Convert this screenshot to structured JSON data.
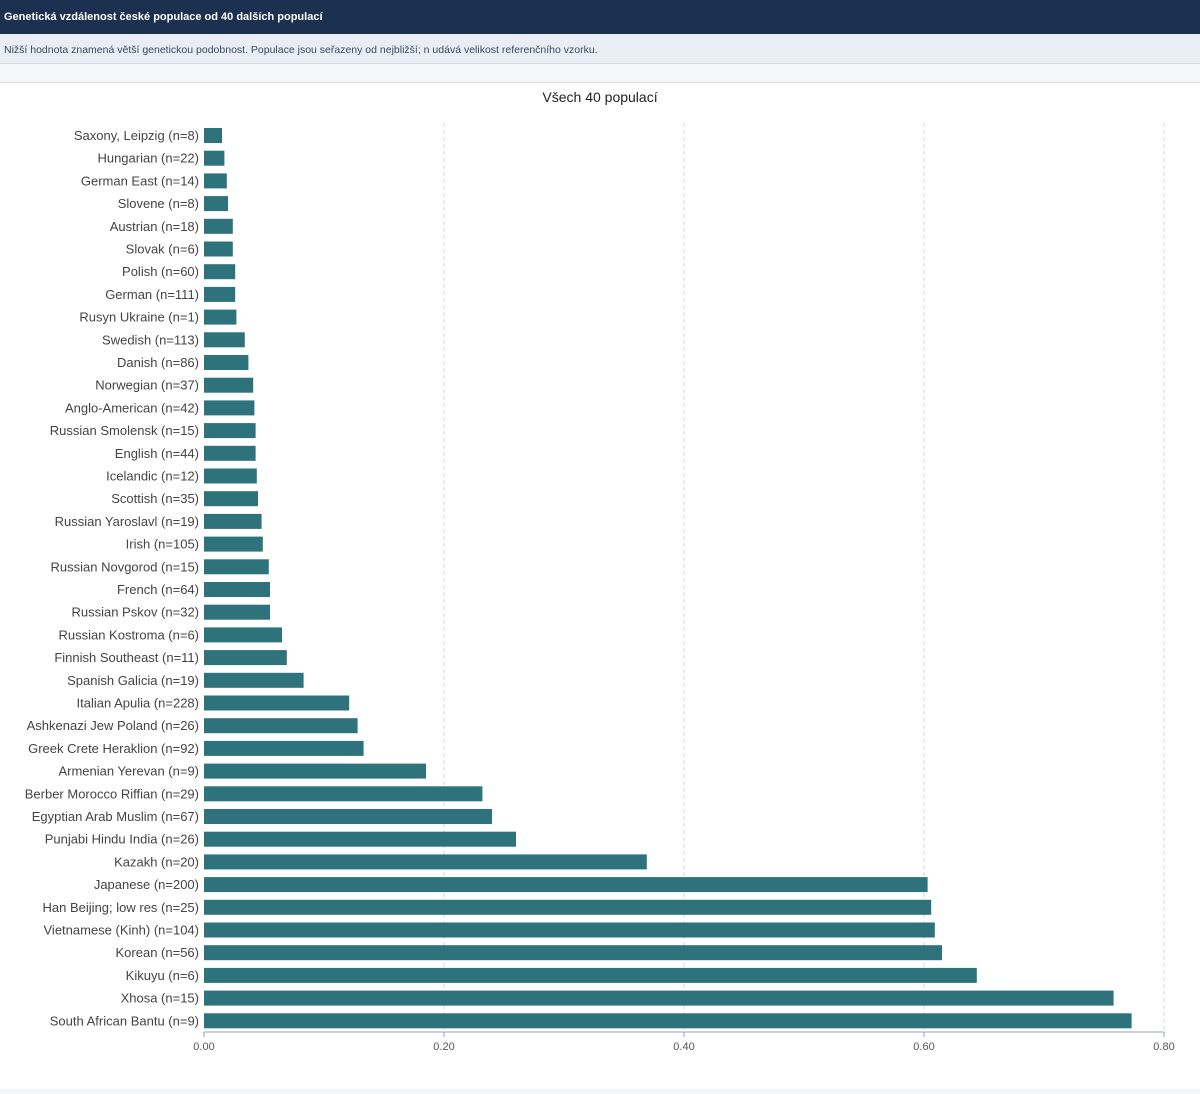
{
  "header": {
    "title": "Genetická vzdálenost české populace od 40 dalších populací",
    "subtitle": "Nižší hodnota znamená větší genetickou podobnost. Populace jsou seřazeny od nejbližší; n udává velikost referenčního vzorku."
  },
  "colors": {
    "bar": "#2e737c",
    "header_bg": "#1c3150"
  },
  "chart_data": {
    "type": "bar",
    "orientation": "horizontal",
    "title": "Všech 40 populací",
    "xlabel": "",
    "ylabel": "",
    "xlim": [
      0,
      0.8
    ],
    "xticks": [
      "0.00",
      "0.20",
      "0.40",
      "0.60",
      "0.80"
    ],
    "grid": "vertical-dashed",
    "categories": [
      "Saxony, Leipzig (n=8)",
      "Hungarian (n=22)",
      "German East (n=14)",
      "Slovene (n=8)",
      "Austrian (n=18)",
      "Slovak (n=6)",
      "Polish (n=60)",
      "German (n=111)",
      "Rusyn Ukraine (n=1)",
      "Swedish (n=113)",
      "Danish (n=86)",
      "Norwegian (n=37)",
      "Anglo-American (n=42)",
      "Russian Smolensk (n=15)",
      "English (n=44)",
      "Icelandic (n=12)",
      "Scottish (n=35)",
      "Russian Yaroslavl (n=19)",
      "Irish (n=105)",
      "Russian Novgorod (n=15)",
      "French (n=64)",
      "Russian Pskov (n=32)",
      "Russian Kostroma (n=6)",
      "Finnish Southeast (n=11)",
      "Spanish Galicia (n=19)",
      "Italian Apulia (n=228)",
      "Ashkenazi Jew Poland (n=26)",
      "Greek Crete Heraklion (n=92)",
      "Armenian Yerevan (n=9)",
      "Berber Morocco Riffian (n=29)",
      "Egyptian Arab Muslim (n=67)",
      "Punjabi Hindu India (n=26)",
      "Kazakh (n=20)",
      "Japanese (n=200)",
      "Han Beijing; low res (n=25)",
      "Vietnamese (Kinh) (n=104)",
      "Korean (n=56)",
      "Kikuyu (n=6)",
      "Xhosa (n=15)",
      "South African Bantu (n=9)"
    ],
    "values": [
      0.015,
      0.017,
      0.019,
      0.02,
      0.024,
      0.024,
      0.026,
      0.026,
      0.027,
      0.034,
      0.037,
      0.041,
      0.042,
      0.043,
      0.043,
      0.044,
      0.045,
      0.048,
      0.049,
      0.054,
      0.055,
      0.055,
      0.065,
      0.069,
      0.083,
      0.121,
      0.128,
      0.133,
      0.185,
      0.232,
      0.24,
      0.26,
      0.369,
      0.603,
      0.606,
      0.609,
      0.615,
      0.644,
      0.758,
      0.773
    ]
  }
}
